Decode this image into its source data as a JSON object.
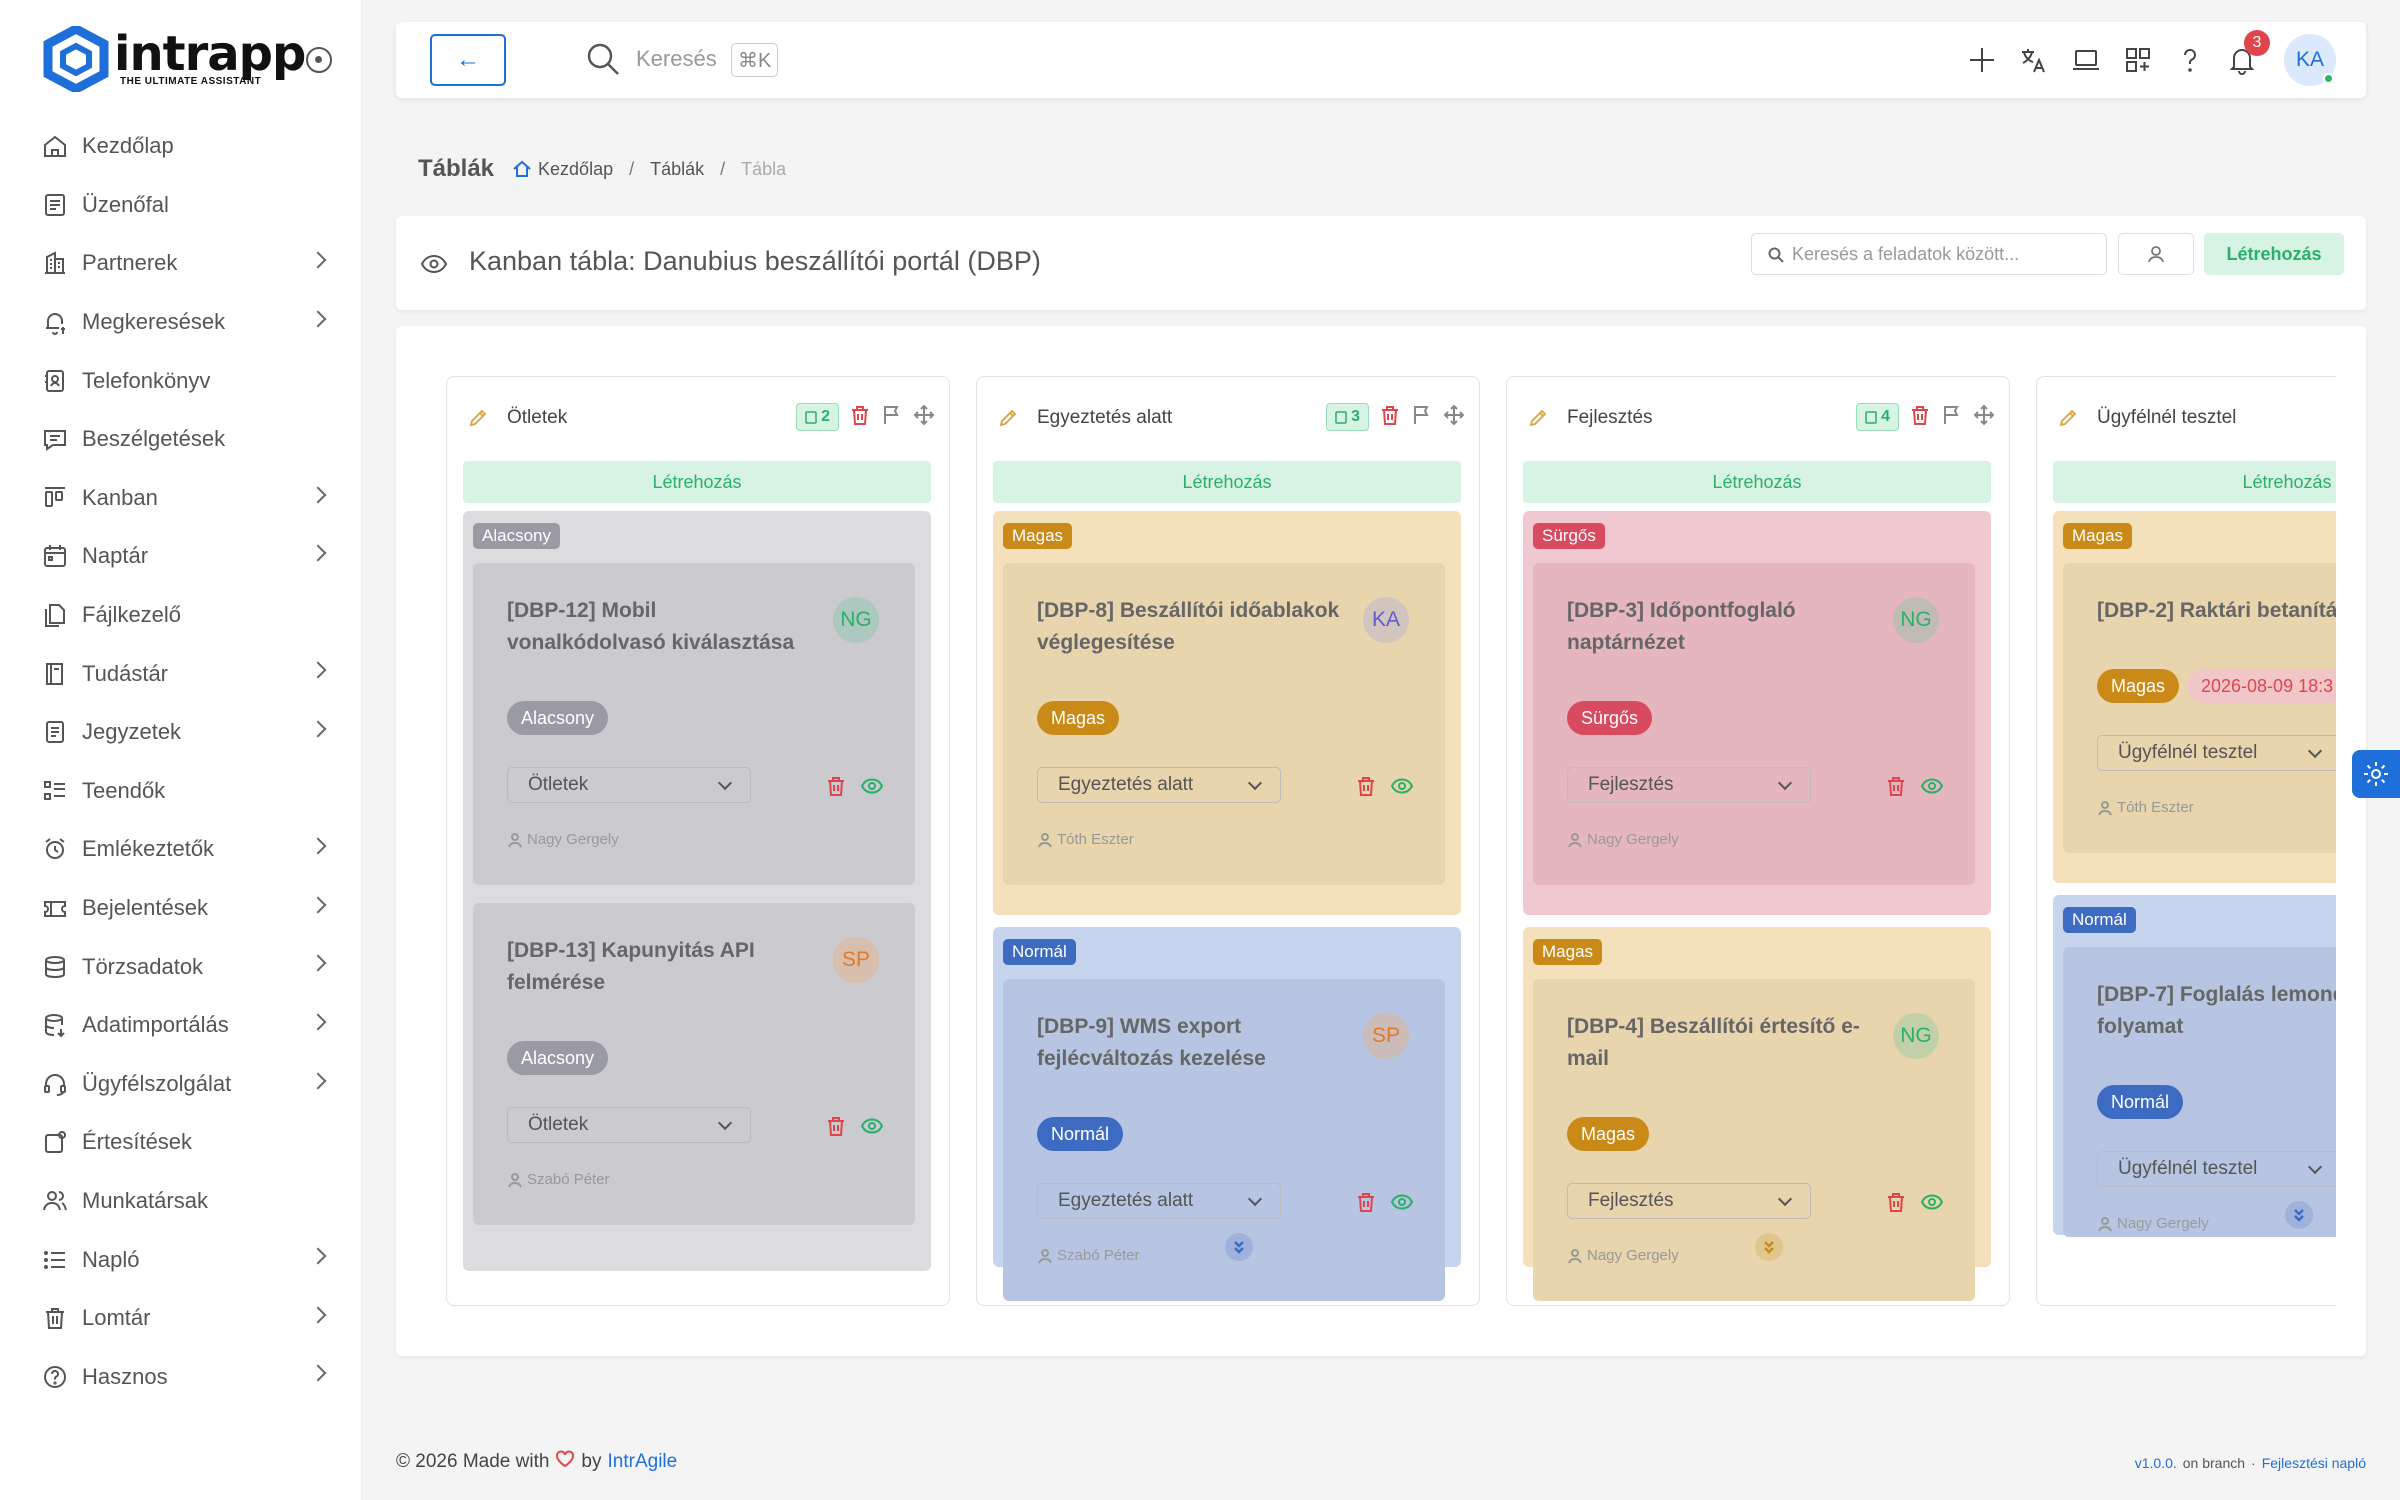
{
  "brand": {
    "name": "intrapp",
    "tagline": "THE ULTIMATE ASSISTANT"
  },
  "sidebar": {
    "items": [
      {
        "label": "Kezdőlap",
        "icon": "home-icon",
        "expandable": false
      },
      {
        "label": "Üzenőfal",
        "icon": "board-icon",
        "expandable": false
      },
      {
        "label": "Partnerek",
        "icon": "building-icon",
        "expandable": true
      },
      {
        "label": "Megkeresések",
        "icon": "bell-dollar-icon",
        "expandable": true
      },
      {
        "label": "Telefonkönyv",
        "icon": "phonebook-icon",
        "expandable": false
      },
      {
        "label": "Beszélgetések",
        "icon": "chat-icon",
        "expandable": false
      },
      {
        "label": "Kanban",
        "icon": "kanban-icon",
        "expandable": true
      },
      {
        "label": "Naptár",
        "icon": "calendar-icon",
        "expandable": true
      },
      {
        "label": "Fájlkezelő",
        "icon": "files-icon",
        "expandable": false
      },
      {
        "label": "Tudástár",
        "icon": "book-icon",
        "expandable": true
      },
      {
        "label": "Jegyzetek",
        "icon": "notes-icon",
        "expandable": true
      },
      {
        "label": "Teendők",
        "icon": "checklist-icon",
        "expandable": false
      },
      {
        "label": "Emlékeztetők",
        "icon": "alarm-icon",
        "expandable": true
      },
      {
        "label": "Bejelentések",
        "icon": "ticket-icon",
        "expandable": true
      },
      {
        "label": "Törzsadatok",
        "icon": "database-icon",
        "expandable": true
      },
      {
        "label": "Adatimportálás",
        "icon": "database-import-icon",
        "expandable": true
      },
      {
        "label": "Ügyfélszolgálat",
        "icon": "headset-icon",
        "expandable": true
      },
      {
        "label": "Értesítések",
        "icon": "notification-icon",
        "expandable": false
      },
      {
        "label": "Munkatársak",
        "icon": "users-icon",
        "expandable": false
      },
      {
        "label": "Napló",
        "icon": "list-icon",
        "expandable": true
      },
      {
        "label": "Lomtár",
        "icon": "trash-icon",
        "expandable": true
      },
      {
        "label": "Hasznos",
        "icon": "help-icon",
        "expandable": true
      }
    ]
  },
  "topbar": {
    "back_label": "←",
    "search_placeholder": "Keresés",
    "search_shortcut": "⌘K",
    "notification_count": "3",
    "user_initials": "KA"
  },
  "breadcrumb": {
    "title": "Táblák",
    "items": [
      "Kezdőlap",
      "Táblák",
      "Tábla"
    ]
  },
  "board_header": {
    "title": "Kanban tábla: Danubius beszállítói portál (DBP)",
    "task_search_placeholder": "Keresés a feladatok között...",
    "create_label": "Létrehozás"
  },
  "colors": {
    "accent": "#1e6fd9",
    "success": "#2bb06a",
    "low_group": "#dcdcde",
    "low_card": "#cacacf",
    "low_tag": "#9a9aa2",
    "high_group": "#f5e0bc",
    "high_card": "#e8d4ad",
    "high_tag": "#c98a17",
    "urgent_group": "#f0c9d0",
    "urgent_card": "#e6b6bf",
    "urgent_tag": "#d84a5f",
    "normal_group": "#c7d4ee",
    "normal_card": "#b7c5e2",
    "normal_tag": "#3d6bc2"
  },
  "columns": [
    {
      "title": "Ötletek",
      "count": "2",
      "create_label": "Létrehozás",
      "groups": [
        {
          "label": "Alacsony",
          "cards": [
            {
              "title": "[DBP-12] Mobil vonalkódolvasó kiválasztása",
              "initials": "NG",
              "priority": "Alacsony",
              "status": "Ötletek",
              "assignee": "Nagy Gergely"
            },
            {
              "title": "[DBP-13] Kapunyitás API felmérése",
              "initials": "SP",
              "priority": "Alacsony",
              "status": "Ötletek",
              "assignee": "Szabó Péter"
            }
          ]
        }
      ]
    },
    {
      "title": "Egyeztetés alatt",
      "count": "3",
      "create_label": "Létrehozás",
      "groups": [
        {
          "label": "Magas",
          "cards": [
            {
              "title": "[DBP-8] Beszállítói időablakok véglegesítése",
              "initials": "KA",
              "priority": "Magas",
              "status": "Egyeztetés alatt",
              "assignee": "Tóth Eszter"
            }
          ]
        },
        {
          "label": "Normál",
          "cards": [
            {
              "title": "[DBP-9] WMS export fejlécváltozás kezelése",
              "initials": "SP",
              "priority": "Normál",
              "status": "Egyeztetés alatt",
              "assignee": "Szabó Péter"
            }
          ]
        }
      ]
    },
    {
      "title": "Fejlesztés",
      "count": "4",
      "create_label": "Létrehozás",
      "groups": [
        {
          "label": "Sürgős",
          "cards": [
            {
              "title": "[DBP-3] Időpontfoglaló naptárnézet",
              "initials": "NG",
              "priority": "Sürgős",
              "status": "Fejlesztés",
              "assignee": "Nagy Gergely"
            }
          ]
        },
        {
          "label": "Magas",
          "cards": [
            {
              "title": "[DBP-4] Beszállítói értesítő e-mail",
              "initials": "NG",
              "priority": "Magas",
              "status": "Fejlesztés",
              "assignee": "Nagy Gergely"
            }
          ]
        }
      ]
    },
    {
      "title": "Ügyfélnél tesztel",
      "count": "",
      "create_label": "Létrehozás",
      "groups": [
        {
          "label": "Magas",
          "cards": [
            {
              "title": "[DBP-2] Raktári betanítá",
              "initials": "",
              "priority": "Magas",
              "date": "2026-08-09 18:3",
              "status": "Ügyfélnél tesztel",
              "assignee": "Tóth Eszter"
            }
          ]
        },
        {
          "label": "Normál",
          "cards": [
            {
              "title": "[DBP-7] Foglalás lemond folyamat",
              "initials": "",
              "priority": "Normál",
              "status": "Ügyfélnél tesztel",
              "assignee": "Nagy Gergely"
            }
          ]
        }
      ]
    }
  ],
  "footer": {
    "made_prefix": "© 2026 Made with",
    "made_by": "by",
    "made_brand": "IntrAgile",
    "version": "v1.0.0.",
    "on_branch": "on branch",
    "separator": "·",
    "changelog": "Fejlesztési napló"
  }
}
